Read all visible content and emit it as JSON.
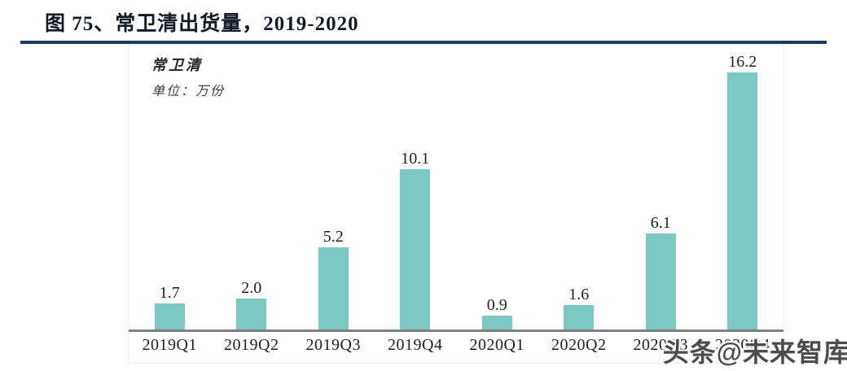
{
  "page": {
    "title": "图 75、常卫清出货量，2019-2020"
  },
  "chart_data": {
    "type": "bar",
    "title": "常卫清",
    "subtitle": "单位：万份",
    "categories": [
      "2019Q1",
      "2019Q2",
      "2019Q3",
      "2019Q4",
      "2020Q1",
      "2020Q2",
      "2020Q3",
      "2020Q4"
    ],
    "values": [
      1.7,
      2.0,
      5.2,
      10.1,
      0.9,
      1.6,
      6.1,
      16.2
    ],
    "ylim": [
      0,
      17
    ],
    "grid": false,
    "data_labels": true,
    "legend_position": "top-left",
    "bar_color": "#7cc9c2",
    "axis_color": "#7f7f7f"
  },
  "watermark": {
    "text": "头条@未来智库"
  }
}
